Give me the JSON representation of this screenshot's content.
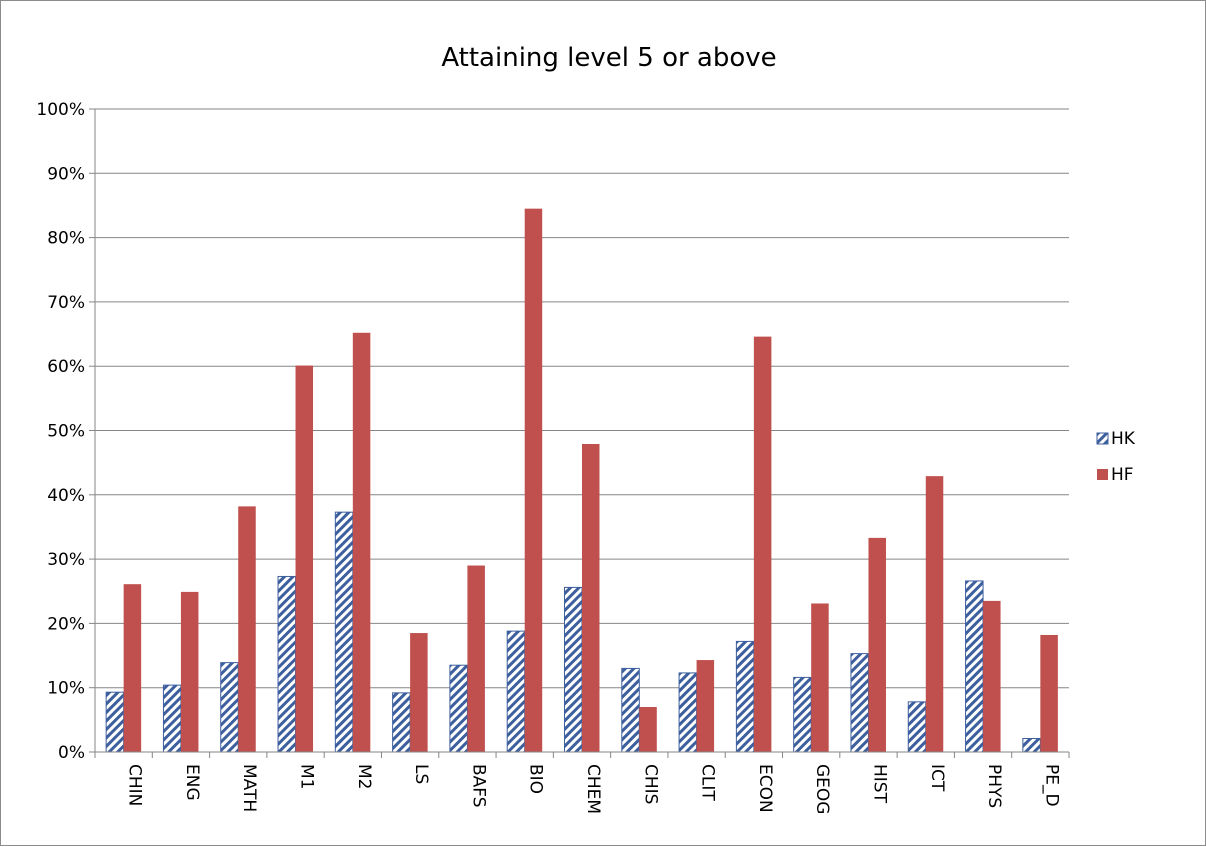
{
  "chart_data": {
    "type": "bar",
    "title": "Attaining level 5 or above",
    "xlabel": "",
    "ylabel": "",
    "ylim": [
      0,
      100
    ],
    "y_tick_step": 10,
    "y_tick_format": "percent",
    "grid": true,
    "legend_position": "right",
    "categories": [
      "CHIN",
      "ENG",
      "MATH",
      "M1",
      "M2",
      "LS",
      "BAFS",
      "BIO",
      "CHEM",
      "CHIS",
      "CLIT",
      "ECON",
      "GEOG",
      "HIST",
      "ICT",
      "PHYS",
      "PE_D"
    ],
    "series": [
      {
        "name": "HK",
        "pattern": "diagonal-stripes",
        "color": "#3d5f9e",
        "values": [
          9.3,
          10.4,
          13.9,
          27.3,
          37.3,
          9.2,
          13.5,
          18.8,
          25.6,
          13.0,
          12.3,
          17.2,
          11.6,
          15.3,
          7.8,
          26.6,
          2.1
        ]
      },
      {
        "name": "HF",
        "pattern": "solid",
        "color": "#c0504d",
        "values": [
          26.1,
          24.9,
          38.2,
          60.1,
          65.2,
          18.5,
          29.0,
          84.5,
          47.9,
          7.0,
          14.3,
          64.6,
          23.1,
          33.3,
          42.9,
          23.5,
          18.2
        ]
      }
    ]
  }
}
